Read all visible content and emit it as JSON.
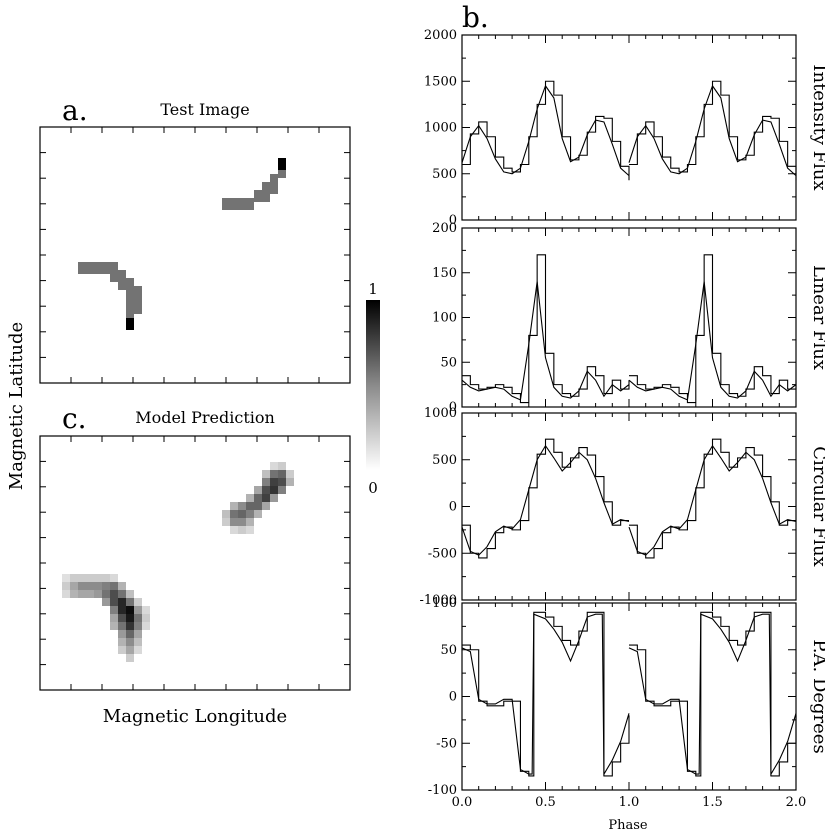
{
  "left": {
    "label_a": "a.",
    "title_a": "Test Image",
    "label_c": "c.",
    "title_c": "Model Prediction",
    "ylabel": "Magnetic Latitude",
    "xlabel": "Magnetic Longitude",
    "colorbar": {
      "max_label": "1",
      "min_label": "0"
    }
  },
  "right": {
    "label_b": "b.",
    "xlabel": "Phase",
    "xticks": [
      "0.0",
      "0.5",
      "1.0",
      "1.5",
      "2.0"
    ]
  },
  "chart_data": [
    {
      "type": "heatmap",
      "title": "Test Image",
      "xlabel": "",
      "ylabel": "Magnetic Latitude",
      "colorbar_range": [
        0,
        1
      ],
      "features": [
        {
          "name": "upper-right arc",
          "cells": [
            [
              222,
              198
            ],
            [
              230,
              198
            ],
            [
              238,
              198
            ],
            [
              246,
              198
            ],
            [
              254,
              190
            ],
            [
              262,
              190
            ],
            [
              262,
              182
            ],
            [
              270,
              182
            ],
            [
              270,
              174
            ],
            [
              278,
              166
            ],
            [
              278,
              158
            ]
          ],
          "value": 0.55,
          "tip_value": 1.0
        },
        {
          "name": "lower-left arc",
          "cells": [
            [
              78,
              262
            ],
            [
              86,
              262
            ],
            [
              94,
              262
            ],
            [
              102,
              262
            ],
            [
              110,
              262
            ],
            [
              110,
              270
            ],
            [
              118,
              270
            ],
            [
              118,
              278
            ],
            [
              126,
              278
            ],
            [
              126,
              286
            ],
            [
              126,
              294
            ],
            [
              134,
              286
            ],
            [
              134,
              294
            ],
            [
              134,
              302
            ],
            [
              126,
              302
            ],
            [
              126,
              310
            ],
            [
              126,
              318
            ]
          ],
          "value": 0.55,
          "tip_value": 1.0
        }
      ]
    },
    {
      "type": "heatmap",
      "title": "Model Prediction",
      "xlabel": "Magnetic Longitude",
      "ylabel": "",
      "colorbar_range": [
        0,
        1
      ]
    },
    {
      "type": "line",
      "ylabel": "Intensity Flux",
      "xlim": [
        0,
        2
      ],
      "ylim": [
        0,
        2000
      ],
      "yticks": [
        "0",
        "500",
        "1000",
        "1500",
        "2000"
      ],
      "x": [
        0.0,
        0.05,
        0.1,
        0.15,
        0.2,
        0.25,
        0.3,
        0.35,
        0.4,
        0.45,
        0.5,
        0.55,
        0.6,
        0.65,
        0.7,
        0.75,
        0.8,
        0.85,
        0.9,
        0.95,
        1.0
      ],
      "series": [
        {
          "values": [
            600,
            930,
            1060,
            900,
            680,
            560,
            520,
            600,
            900,
            1250,
            1500,
            1350,
            900,
            650,
            700,
            950,
            1120,
            1100,
            850,
            580,
            430
          ]
        },
        {
          "values": [
            620,
            900,
            1020,
            880,
            660,
            520,
            500,
            560,
            850,
            1200,
            1450,
            1320,
            880,
            630,
            680,
            920,
            1080,
            1060,
            820,
            560,
            480
          ]
        }
      ]
    },
    {
      "type": "line",
      "ylabel": "Linear Flux",
      "xlim": [
        0,
        2
      ],
      "ylim": [
        0,
        200
      ],
      "yticks": [
        "0",
        "50",
        "100",
        "150",
        "200"
      ],
      "x": [
        0.0,
        0.05,
        0.1,
        0.15,
        0.2,
        0.25,
        0.3,
        0.35,
        0.4,
        0.45,
        0.5,
        0.55,
        0.6,
        0.65,
        0.7,
        0.75,
        0.8,
        0.85,
        0.9,
        0.95,
        1.0
      ],
      "series": [
        {
          "values": [
            35,
            25,
            20,
            22,
            25,
            22,
            15,
            5,
            80,
            170,
            60,
            25,
            15,
            12,
            20,
            45,
            35,
            15,
            30,
            20,
            30
          ]
        },
        {
          "values": [
            30,
            22,
            18,
            20,
            22,
            20,
            12,
            8,
            70,
            140,
            55,
            22,
            12,
            10,
            18,
            40,
            30,
            12,
            25,
            18,
            25
          ]
        }
      ]
    },
    {
      "type": "line",
      "ylabel": "Circular Flux",
      "xlim": [
        0,
        2
      ],
      "ylim": [
        -1000,
        1000
      ],
      "yticks": [
        "-1000",
        "-500",
        "0",
        "500",
        "1000"
      ],
      "x": [
        0.0,
        0.05,
        0.1,
        0.15,
        0.2,
        0.25,
        0.3,
        0.35,
        0.4,
        0.45,
        0.5,
        0.55,
        0.6,
        0.65,
        0.7,
        0.75,
        0.8,
        0.85,
        0.9,
        0.95,
        1.0
      ],
      "series": [
        {
          "values": [
            -200,
            -500,
            -550,
            -450,
            -280,
            -220,
            -250,
            -150,
            200,
            560,
            720,
            580,
            420,
            520,
            630,
            550,
            320,
            50,
            -200,
            -150,
            -150
          ]
        },
        {
          "values": [
            -220,
            -480,
            -520,
            -430,
            -270,
            -210,
            -240,
            -140,
            180,
            500,
            650,
            520,
            380,
            470,
            580,
            500,
            300,
            40,
            -190,
            -140,
            -160
          ]
        }
      ]
    },
    {
      "type": "line",
      "ylabel": "P.A. Degrees",
      "xlim": [
        0,
        2
      ],
      "ylim": [
        -100,
        100
      ],
      "yticks": [
        "-100",
        "-50",
        "0",
        "50",
        "100"
      ],
      "x": [
        0.0,
        0.05,
        0.1,
        0.15,
        0.2,
        0.25,
        0.3,
        0.35,
        0.4,
        0.42,
        0.43,
        0.5,
        0.55,
        0.6,
        0.65,
        0.7,
        0.75,
        0.8,
        0.84,
        0.85,
        0.9,
        0.95,
        1.0
      ],
      "series": [
        {
          "values": [
            55,
            50,
            -5,
            -10,
            -10,
            -5,
            -5,
            -80,
            -85,
            -85,
            90,
            85,
            75,
            60,
            55,
            70,
            90,
            90,
            90,
            -85,
            -70,
            -50,
            -20
          ]
        },
        {
          "values": [
            52,
            48,
            -3,
            -8,
            -8,
            -3,
            -3,
            -78,
            -83,
            -83,
            88,
            83,
            72,
            58,
            38,
            60,
            85,
            88,
            88,
            -83,
            -68,
            -48,
            -18
          ]
        }
      ]
    }
  ]
}
